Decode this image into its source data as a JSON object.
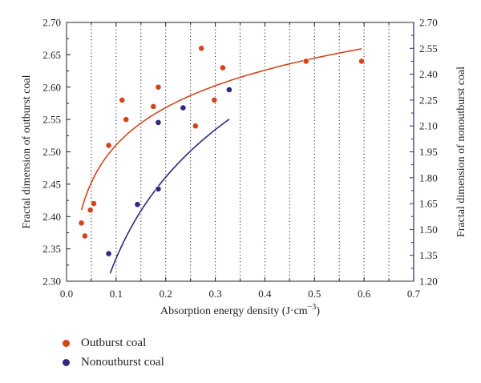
{
  "chart_data": {
    "type": "scatter",
    "xlabel": "Absorption energy density (J·cm",
    "xlabel_sup": "−3",
    "xlabel_end": ")",
    "ylabel_left": "Fractal dimension of outburst coal",
    "ylabel_right": "Fractal dimension of nonoutburst coal",
    "xlim": [
      0.0,
      0.7
    ],
    "ylim_left": [
      2.3,
      2.7
    ],
    "ylim_right": [
      1.2,
      2.7
    ],
    "x_ticks": [
      "0.0",
      "0.1",
      "0.2",
      "0.3",
      "0.4",
      "0.5",
      "0.6",
      "0.7"
    ],
    "y_left_ticks": [
      "2.30",
      "2.35",
      "2.40",
      "2.45",
      "2.50",
      "2.55",
      "2.60",
      "2.65",
      "2.70"
    ],
    "y_right_ticks": [
      "1.20",
      "1.35",
      "1.50",
      "1.65",
      "1.80",
      "1.95",
      "2.10",
      "2.25",
      "2.40",
      "2.55",
      "2.70"
    ],
    "grid": "vertical dotted every 0.05",
    "series": [
      {
        "name": "Outburst coal",
        "color": "#d4441c",
        "axis": "left",
        "points": [
          [
            0.03,
            2.39
          ],
          [
            0.037,
            2.37
          ],
          [
            0.048,
            2.41
          ],
          [
            0.055,
            2.42
          ],
          [
            0.085,
            2.51
          ],
          [
            0.112,
            2.58
          ],
          [
            0.12,
            2.55
          ],
          [
            0.175,
            2.57
          ],
          [
            0.185,
            2.6
          ],
          [
            0.26,
            2.54
          ],
          [
            0.272,
            2.66
          ],
          [
            0.298,
            2.58
          ],
          [
            0.315,
            2.63
          ],
          [
            0.483,
            2.64
          ],
          [
            0.595,
            2.64
          ]
        ],
        "fit": {
          "type": "log",
          "a": 2.7026,
          "b": 0.0834,
          "x_range": [
            0.03,
            0.595
          ]
        }
      },
      {
        "name": "Nonoutburst coal",
        "color": "#2e2a7e",
        "axis": "right",
        "points": [
          [
            0.085,
            1.36
          ],
          [
            0.143,
            1.645
          ],
          [
            0.185,
            1.735
          ],
          [
            0.185,
            2.12
          ],
          [
            0.235,
            2.205
          ],
          [
            0.328,
            2.31
          ]
        ],
        "fit": {
          "type": "log",
          "a": 2.896,
          "b": 0.679,
          "x_range": [
            0.088,
            0.328
          ]
        }
      }
    ],
    "legend": [
      {
        "label": "Outburst coal",
        "color": "#d4441c"
      },
      {
        "label": "Nonoutburst coal",
        "color": "#2e2a7e"
      }
    ],
    "legend_position": "below"
  }
}
